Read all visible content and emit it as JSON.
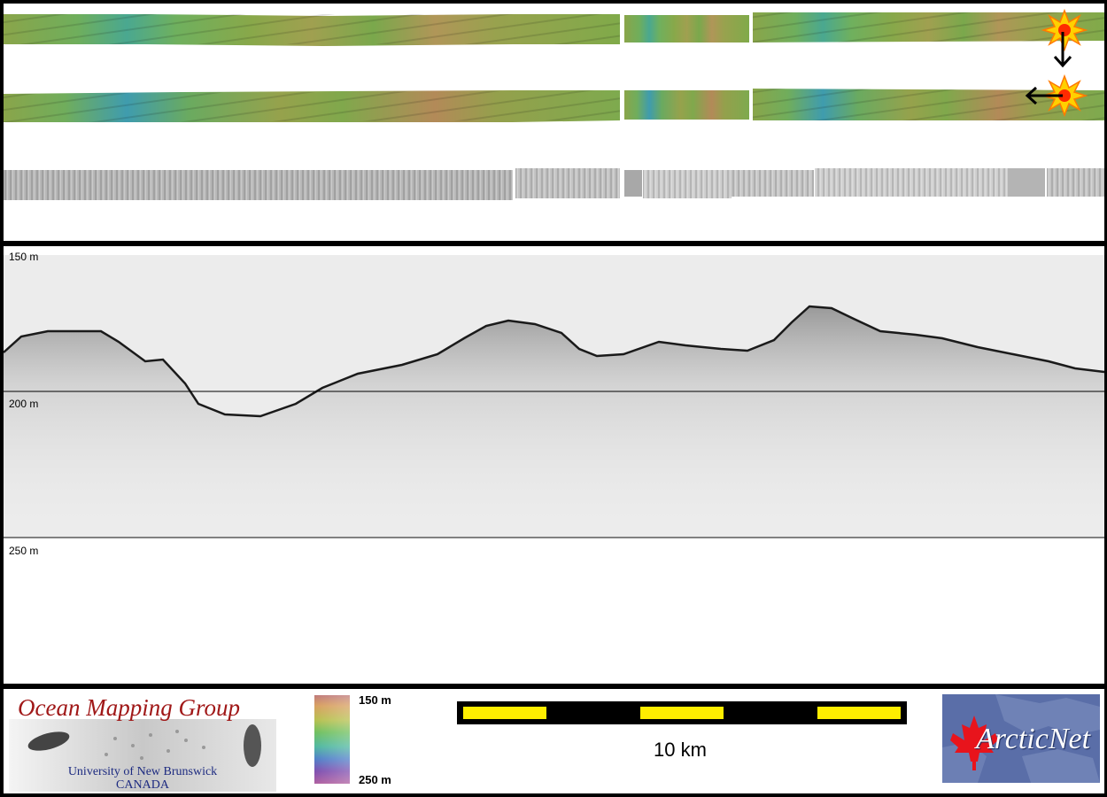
{
  "profile": {
    "depth_labels": [
      "150 m",
      "200 m",
      "250 m"
    ]
  },
  "footer": {
    "ocean_mapping_group": {
      "title": "Ocean Mapping Group",
      "line1": "University of New Brunswick",
      "line2": "CANADA"
    },
    "colorbar": {
      "top_label": "150 m",
      "bottom_label": "250 m"
    },
    "scalebar": {
      "label": "10 km"
    },
    "arcticnet": {
      "text": "ArcticNet"
    }
  },
  "colors": {
    "panel_border": "#000000",
    "scalebar_fill": "#ffee00",
    "ocean_title": "#a01818",
    "ocean_subtitle": "#1c2a80",
    "arcticnet_bg": "#5a6ea8"
  },
  "icons": {
    "sun_top": "sun-icon",
    "sun_bottom": "sun-icon",
    "arrow_down": "arrow-down-icon",
    "arrow_left": "arrow-left-icon",
    "maple_leaf": "maple-leaf-icon"
  }
}
